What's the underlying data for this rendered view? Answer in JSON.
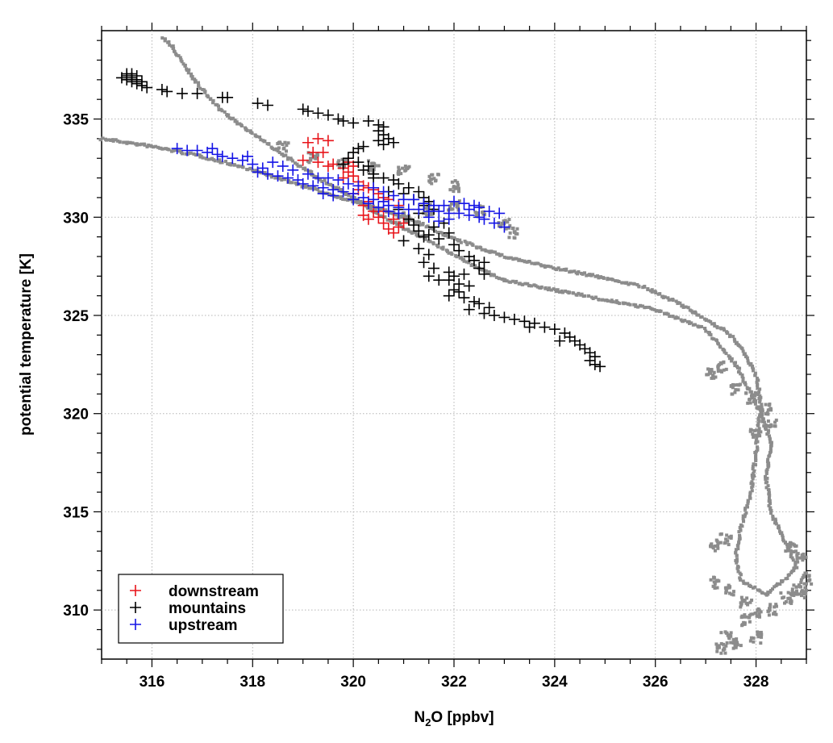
{
  "chart_data": {
    "type": "scatter",
    "xlabel": {
      "main": "N",
      "sub": "2",
      "rest": "O [ppbv]"
    },
    "ylabel": "potential temperature [K]",
    "xlim": [
      315,
      329
    ],
    "ylim": [
      307.5,
      339.5
    ],
    "x_major_ticks": [
      316,
      318,
      320,
      322,
      324,
      326,
      328
    ],
    "x_minor_step": 0.5,
    "y_major_ticks": [
      310,
      315,
      320,
      325,
      330,
      335
    ],
    "y_minor_step": 1,
    "grid": true,
    "legend": {
      "placement": "bottom-left",
      "entries": [
        {
          "label": "downstream",
          "color": "#e8141a"
        },
        {
          "label": "mountains",
          "color": "#000000"
        },
        {
          "label": "upstream",
          "color": "#1414e6"
        }
      ]
    },
    "background_color": "#8c8c8c",
    "background_path": [
      [
        315.0,
        334.0
      ],
      [
        316.0,
        333.6
      ],
      [
        317.0,
        333.1
      ],
      [
        318.0,
        332.4
      ],
      [
        319.0,
        331.6
      ],
      [
        320.0,
        330.8
      ],
      [
        320.8,
        330.2
      ],
      [
        321.3,
        329.7
      ],
      [
        322.0,
        328.9
      ],
      [
        323.0,
        328.0
      ],
      [
        324.0,
        327.4
      ],
      [
        325.0,
        326.9
      ],
      [
        325.7,
        326.5
      ],
      [
        326.4,
        325.7
      ],
      [
        327.0,
        324.8
      ],
      [
        327.4,
        324.2
      ],
      [
        327.7,
        323.4
      ],
      [
        328.0,
        322.0
      ],
      [
        328.1,
        320.4
      ],
      [
        328.0,
        318.0
      ],
      [
        327.9,
        316.0
      ],
      [
        327.7,
        314.2
      ],
      [
        327.6,
        312.8
      ],
      [
        327.7,
        311.5
      ],
      [
        328.2,
        310.8
      ],
      [
        328.5,
        311.4
      ],
      [
        328.8,
        312.2
      ],
      [
        328.6,
        313.4
      ],
      [
        328.3,
        314.9
      ],
      [
        328.2,
        316.8
      ],
      [
        328.3,
        318.5
      ],
      [
        328.1,
        320.0
      ],
      [
        327.6,
        322.5
      ],
      [
        327.0,
        324.3
      ],
      [
        326.0,
        325.3
      ],
      [
        325.0,
        325.8
      ],
      [
        324.0,
        326.3
      ],
      [
        323.0,
        326.8
      ],
      [
        322.4,
        327.5
      ],
      [
        321.8,
        328.4
      ],
      [
        321.2,
        329.2
      ],
      [
        320.6,
        330.0
      ],
      [
        320.0,
        331.0
      ],
      [
        319.3,
        332.0
      ],
      [
        318.6,
        333.2
      ],
      [
        317.8,
        334.6
      ],
      [
        317.3,
        335.6
      ],
      [
        316.9,
        336.8
      ],
      [
        316.6,
        337.9
      ],
      [
        316.4,
        338.7
      ],
      [
        316.2,
        339.2
      ]
    ],
    "background_aux": [
      [
        318.6,
        333.6
      ],
      [
        319.2,
        333.0
      ],
      [
        319.8,
        332.7
      ],
      [
        320.4,
        332.6
      ],
      [
        321.0,
        332.4
      ],
      [
        321.6,
        332.0
      ],
      [
        322.0,
        331.6
      ],
      [
        321.0,
        330.0
      ],
      [
        321.5,
        330.4
      ],
      [
        322.0,
        330.6
      ],
      [
        322.5,
        330.3
      ],
      [
        323.0,
        329.6
      ],
      [
        323.2,
        329.2
      ],
      [
        327.2,
        311.4
      ],
      [
        327.5,
        311.0
      ],
      [
        327.8,
        310.4
      ],
      [
        328.0,
        309.8
      ],
      [
        328.3,
        310.0
      ],
      [
        328.6,
        310.6
      ],
      [
        328.9,
        310.9
      ],
      [
        327.4,
        308.6
      ],
      [
        327.3,
        308.0
      ],
      [
        327.6,
        308.3
      ],
      [
        328.0,
        308.6
      ],
      [
        327.8,
        309.5
      ],
      [
        327.2,
        313.3
      ],
      [
        327.4,
        313.6
      ],
      [
        328.8,
        311.0
      ],
      [
        329.0,
        311.6
      ],
      [
        328.9,
        312.6
      ],
      [
        328.7,
        313.2
      ],
      [
        327.1,
        322.0
      ],
      [
        327.3,
        322.4
      ],
      [
        327.6,
        321.2
      ],
      [
        327.9,
        320.8
      ],
      [
        328.2,
        320.2
      ],
      [
        328.3,
        319.4
      ],
      [
        328.0,
        319.0
      ]
    ],
    "series": [
      {
        "name": "downstream",
        "color": "#e8141a",
        "values": [
          [
            319.0,
            332.9
          ],
          [
            319.2,
            333.3
          ],
          [
            319.1,
            333.8
          ],
          [
            319.3,
            334.0
          ],
          [
            319.5,
            333.9
          ],
          [
            319.4,
            333.3
          ],
          [
            319.3,
            332.8
          ],
          [
            319.5,
            332.6
          ],
          [
            319.6,
            332.7
          ],
          [
            319.8,
            332.5
          ],
          [
            319.9,
            332.3
          ],
          [
            320.0,
            332.1
          ],
          [
            320.1,
            331.8
          ],
          [
            320.2,
            331.6
          ],
          [
            320.3,
            331.5
          ],
          [
            320.4,
            331.4
          ],
          [
            320.1,
            331.4
          ],
          [
            320.0,
            331.2
          ],
          [
            320.5,
            331.2
          ],
          [
            320.6,
            331.0
          ],
          [
            320.3,
            330.8
          ],
          [
            320.2,
            330.6
          ],
          [
            320.4,
            330.3
          ],
          [
            320.5,
            330.0
          ],
          [
            320.2,
            330.1
          ],
          [
            320.3,
            329.9
          ],
          [
            320.6,
            329.7
          ],
          [
            320.7,
            329.4
          ],
          [
            320.8,
            329.2
          ],
          [
            320.9,
            329.5
          ],
          [
            321.0,
            329.7
          ],
          [
            320.8,
            329.9
          ],
          [
            320.6,
            330.3
          ],
          [
            320.9,
            330.6
          ],
          [
            320.7,
            330.9
          ],
          [
            319.9,
            332.8
          ],
          [
            320.0,
            332.6
          ],
          [
            319.8,
            332.0
          ]
        ]
      },
      {
        "name": "mountains",
        "color": "#000000",
        "values": [
          [
            315.4,
            337.1
          ],
          [
            315.5,
            337.0
          ],
          [
            315.5,
            337.2
          ],
          [
            315.6,
            337.3
          ],
          [
            315.6,
            337.1
          ],
          [
            315.6,
            336.9
          ],
          [
            315.7,
            337.0
          ],
          [
            315.7,
            336.8
          ],
          [
            315.8,
            336.9
          ],
          [
            315.8,
            336.7
          ],
          [
            315.5,
            337.3
          ],
          [
            315.7,
            337.2
          ],
          [
            315.9,
            336.6
          ],
          [
            316.2,
            336.5
          ],
          [
            316.3,
            336.4
          ],
          [
            316.6,
            336.3
          ],
          [
            316.9,
            336.3
          ],
          [
            317.4,
            336.1
          ],
          [
            317.5,
            336.1
          ],
          [
            318.1,
            335.8
          ],
          [
            318.3,
            335.7
          ],
          [
            319.0,
            335.5
          ],
          [
            319.1,
            335.4
          ],
          [
            319.3,
            335.3
          ],
          [
            319.5,
            335.2
          ],
          [
            319.7,
            335.0
          ],
          [
            319.8,
            334.9
          ],
          [
            320.0,
            334.8
          ],
          [
            320.3,
            334.9
          ],
          [
            320.5,
            334.7
          ],
          [
            320.6,
            334.6
          ],
          [
            320.5,
            334.4
          ],
          [
            320.6,
            334.2
          ],
          [
            320.7,
            334.0
          ],
          [
            320.5,
            333.9
          ],
          [
            320.6,
            333.7
          ],
          [
            320.8,
            333.8
          ],
          [
            320.2,
            333.6
          ],
          [
            320.0,
            333.3
          ],
          [
            319.9,
            333.0
          ],
          [
            320.1,
            332.8
          ],
          [
            320.3,
            332.6
          ],
          [
            319.8,
            332.7
          ],
          [
            320.2,
            332.4
          ],
          [
            320.4,
            332.2
          ],
          [
            320.6,
            332.0
          ],
          [
            320.8,
            331.9
          ],
          [
            320.9,
            331.7
          ],
          [
            321.1,
            331.5
          ],
          [
            321.3,
            331.3
          ],
          [
            321.4,
            331.0
          ],
          [
            321.5,
            330.8
          ],
          [
            321.4,
            330.6
          ],
          [
            321.6,
            330.4
          ],
          [
            321.3,
            330.2
          ],
          [
            321.1,
            329.9
          ],
          [
            321.2,
            329.6
          ],
          [
            321.3,
            329.3
          ],
          [
            321.5,
            329.1
          ],
          [
            321.7,
            328.9
          ],
          [
            321.6,
            329.5
          ],
          [
            321.9,
            329.2
          ],
          [
            322.0,
            328.6
          ],
          [
            322.1,
            328.3
          ],
          [
            322.3,
            328.0
          ],
          [
            322.4,
            327.8
          ],
          [
            322.6,
            327.7
          ],
          [
            322.5,
            327.4
          ],
          [
            321.3,
            328.4
          ],
          [
            321.5,
            328.1
          ],
          [
            321.4,
            327.7
          ],
          [
            321.6,
            327.4
          ],
          [
            321.5,
            327.0
          ],
          [
            321.7,
            326.8
          ],
          [
            321.9,
            326.8
          ],
          [
            322.1,
            326.6
          ],
          [
            322.3,
            326.5
          ],
          [
            322.1,
            326.2
          ],
          [
            321.9,
            327.2
          ],
          [
            322.0,
            327.0
          ],
          [
            322.2,
            325.9
          ],
          [
            322.4,
            325.7
          ],
          [
            322.5,
            325.6
          ],
          [
            322.7,
            325.4
          ],
          [
            322.6,
            325.1
          ],
          [
            322.8,
            325.0
          ],
          [
            323.0,
            324.9
          ],
          [
            323.2,
            324.8
          ],
          [
            323.4,
            324.7
          ],
          [
            323.6,
            324.6
          ],
          [
            323.8,
            324.4
          ],
          [
            324.0,
            324.3
          ],
          [
            324.2,
            324.1
          ],
          [
            324.3,
            323.9
          ],
          [
            324.4,
            323.7
          ],
          [
            324.5,
            323.5
          ],
          [
            324.6,
            323.3
          ],
          [
            324.7,
            323.1
          ],
          [
            324.8,
            322.9
          ],
          [
            324.7,
            322.7
          ],
          [
            324.8,
            322.5
          ],
          [
            324.9,
            322.4
          ],
          [
            322.3,
            325.3
          ],
          [
            321.9,
            326.0
          ],
          [
            322.0,
            326.3
          ],
          [
            322.2,
            327.1
          ],
          [
            323.5,
            324.4
          ],
          [
            324.1,
            323.7
          ],
          [
            320.4,
            332.0
          ],
          [
            320.1,
            333.5
          ],
          [
            321.0,
            331.2
          ],
          [
            321.2,
            330.9
          ],
          [
            320.9,
            330.4
          ],
          [
            321.8,
            329.7
          ],
          [
            321.0,
            328.8
          ],
          [
            321.4,
            329.0
          ],
          [
            322.6,
            327.1
          ],
          [
            320.7,
            331.3
          ]
        ]
      },
      {
        "name": "upstream",
        "color": "#1414e6",
        "values": [
          [
            316.5,
            333.5
          ],
          [
            316.7,
            333.4
          ],
          [
            316.9,
            333.4
          ],
          [
            317.1,
            333.3
          ],
          [
            317.3,
            333.2
          ],
          [
            317.4,
            333.1
          ],
          [
            317.6,
            333.0
          ],
          [
            317.8,
            332.9
          ],
          [
            318.0,
            332.7
          ],
          [
            318.2,
            332.5
          ],
          [
            318.1,
            332.3
          ],
          [
            318.3,
            332.2
          ],
          [
            318.5,
            332.1
          ],
          [
            318.7,
            332.0
          ],
          [
            318.9,
            331.9
          ],
          [
            319.0,
            331.7
          ],
          [
            319.2,
            331.6
          ],
          [
            319.4,
            331.5
          ],
          [
            319.6,
            331.4
          ],
          [
            319.8,
            331.3
          ],
          [
            320.0,
            331.2
          ],
          [
            320.2,
            331.0
          ],
          [
            320.4,
            330.9
          ],
          [
            320.6,
            330.8
          ],
          [
            320.7,
            330.6
          ],
          [
            320.9,
            330.5
          ],
          [
            321.1,
            330.4
          ],
          [
            321.3,
            330.4
          ],
          [
            321.5,
            330.3
          ],
          [
            321.7,
            330.3
          ],
          [
            321.9,
            330.2
          ],
          [
            322.1,
            330.2
          ],
          [
            322.3,
            330.1
          ],
          [
            322.5,
            330.0
          ],
          [
            322.6,
            329.9
          ],
          [
            322.8,
            329.7
          ],
          [
            323.0,
            329.5
          ],
          [
            322.4,
            330.6
          ],
          [
            322.2,
            330.7
          ],
          [
            322.0,
            330.8
          ],
          [
            321.8,
            330.6
          ],
          [
            321.6,
            330.6
          ],
          [
            321.4,
            330.7
          ],
          [
            321.2,
            330.9
          ],
          [
            321.0,
            330.9
          ],
          [
            320.8,
            331.1
          ],
          [
            320.6,
            331.3
          ],
          [
            320.4,
            331.5
          ],
          [
            320.1,
            331.6
          ],
          [
            319.9,
            331.7
          ],
          [
            319.7,
            331.9
          ],
          [
            319.5,
            332.0
          ],
          [
            319.3,
            332.0
          ],
          [
            319.1,
            332.2
          ],
          [
            318.8,
            332.4
          ],
          [
            318.6,
            332.6
          ],
          [
            318.4,
            332.8
          ],
          [
            317.9,
            333.1
          ],
          [
            317.2,
            333.5
          ],
          [
            322.7,
            330.3
          ],
          [
            322.9,
            330.2
          ],
          [
            322.5,
            330.5
          ],
          [
            322.3,
            330.4
          ],
          [
            321.9,
            329.9
          ],
          [
            321.7,
            329.8
          ],
          [
            321.5,
            330.0
          ],
          [
            320.9,
            330.2
          ],
          [
            320.7,
            330.3
          ],
          [
            320.5,
            330.5
          ],
          [
            320.3,
            330.7
          ],
          [
            320.0,
            330.9
          ],
          [
            319.6,
            331.1
          ],
          [
            319.4,
            331.2
          ]
        ]
      }
    ]
  }
}
